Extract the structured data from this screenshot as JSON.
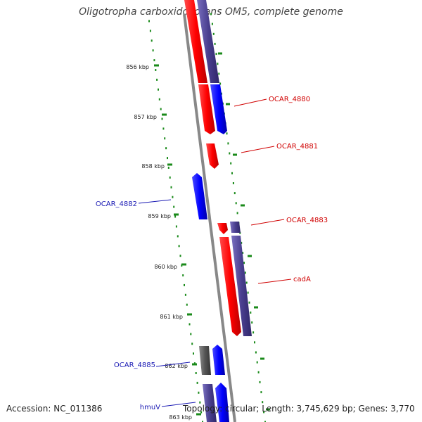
{
  "title": "Oligotropha carboxidovorans OM5, complete genome",
  "footer": {
    "accession": "Accession: NC_011386",
    "summary": "Topology: circular; Length: 3,745,629 bp; Genes: 3,770"
  },
  "ticks": [
    "856 kbp",
    "857 kbp",
    "858 kbp",
    "859 kbp",
    "860 kbp",
    "861 kbp",
    "862 kbp",
    "863 kbp"
  ],
  "gene_labels": [
    "OCAR_4880",
    "OCAR_4881",
    "OCAR_4882",
    "OCAR_4883",
    "cadA",
    "OCAR_4885",
    "hmuV"
  ],
  "colors": {
    "forward_cds": "#ff0000",
    "reverse_cds": "#0000ff",
    "forward_gene": "#4a3f8f",
    "other_feature": "#555555",
    "backbone": "#888888",
    "ruler": "#1a8a1a",
    "label_red": "#d00000",
    "label_blue": "#1a1ab4"
  }
}
